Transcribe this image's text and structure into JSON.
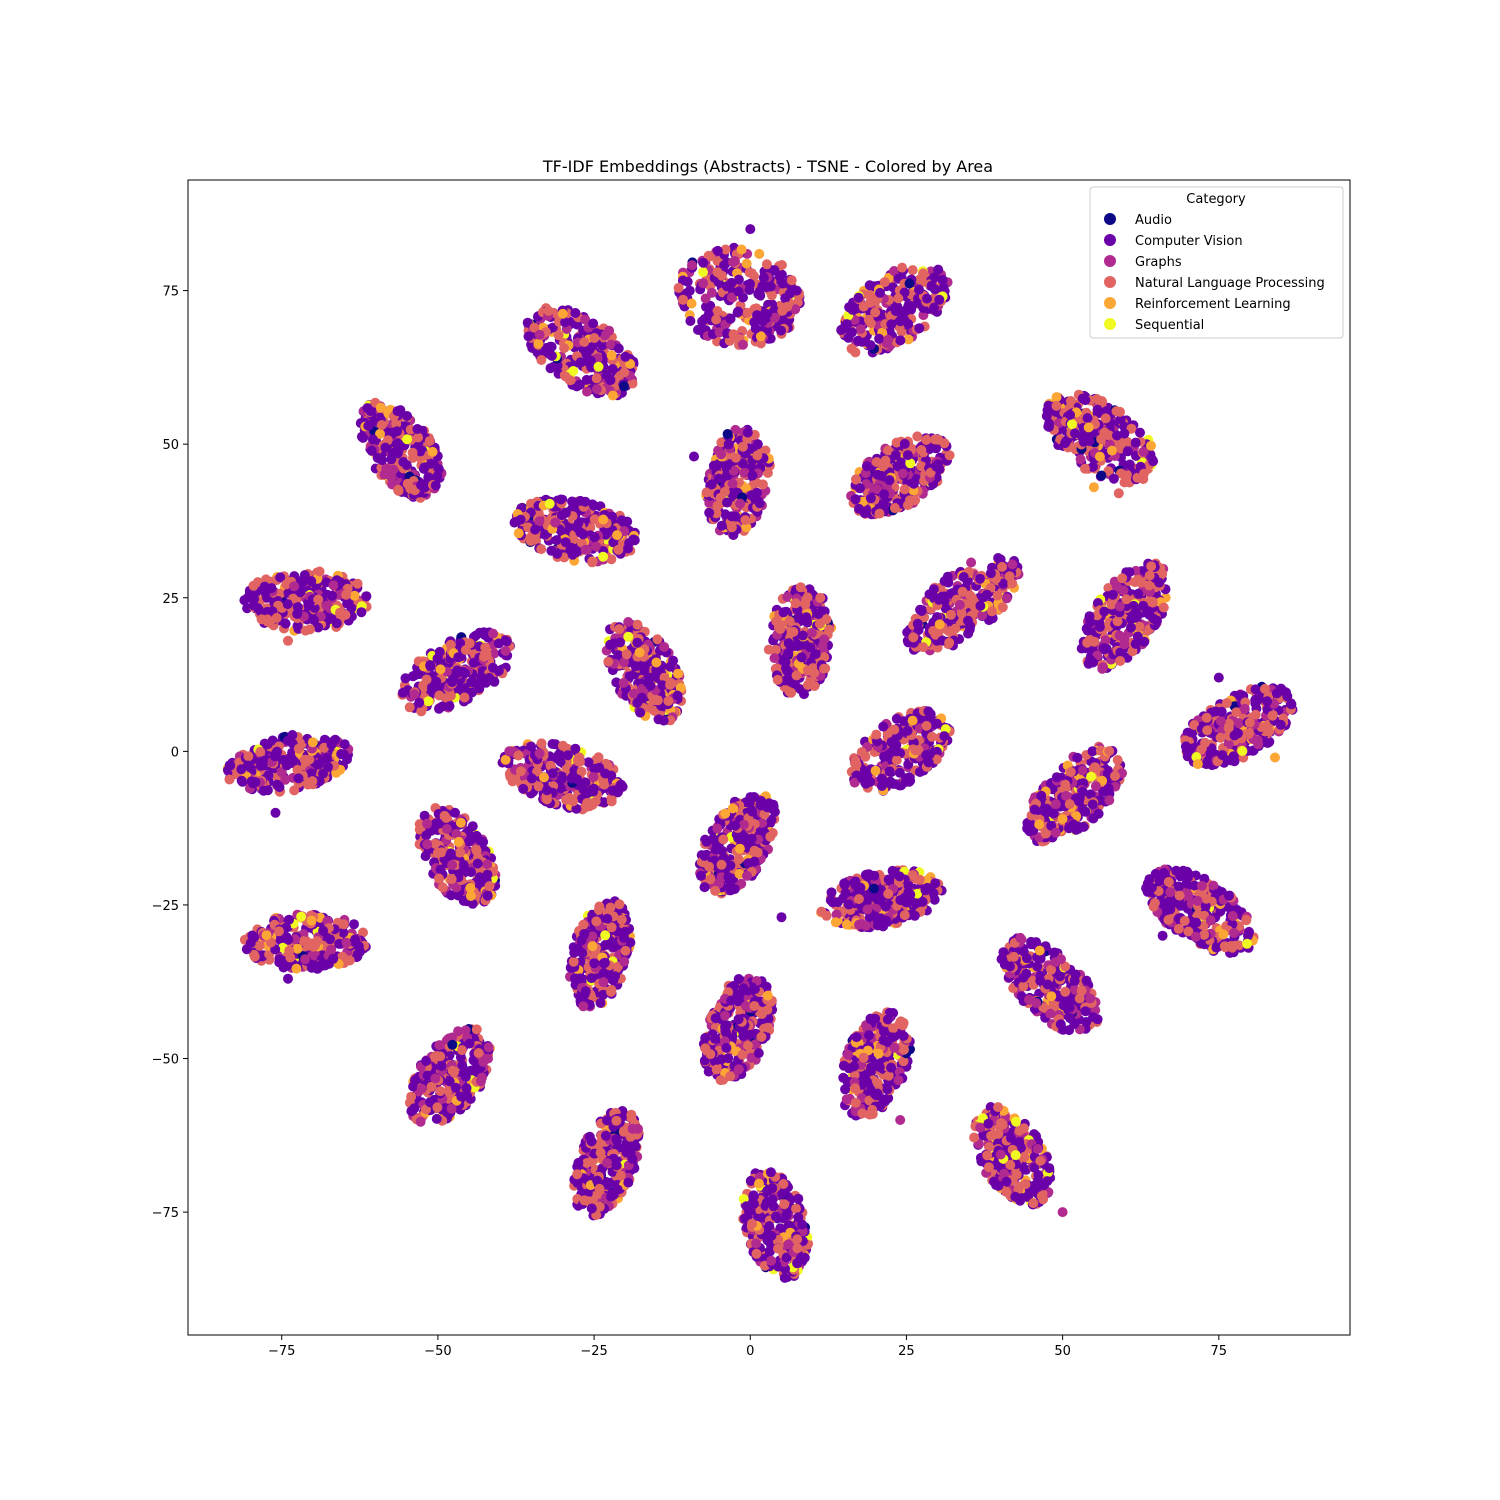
{
  "chart_data": {
    "type": "scatter",
    "title": "TF-IDF Embeddings (Abstracts) - TSNE - Colored by Area",
    "xlabel": "",
    "ylabel": "",
    "xlim": [
      -90,
      96
    ],
    "ylim": [
      -95,
      93
    ],
    "xticks": [
      -75,
      -50,
      -25,
      0,
      25,
      50,
      75
    ],
    "yticks": [
      -75,
      -50,
      -25,
      0,
      25,
      50,
      75
    ],
    "xtick_labels": [
      "−75",
      "−50",
      "−25",
      "0",
      "25",
      "50",
      "75"
    ],
    "ytick_labels": [
      "−75",
      "−50",
      "−25",
      "0",
      "25",
      "50",
      "75"
    ],
    "grid": false,
    "legend": {
      "title": "Category",
      "placement": "top-right"
    },
    "series": [
      {
        "name": "Audio",
        "color": "#0d0887",
        "weight": 0.01
      },
      {
        "name": "Computer Vision",
        "color": "#6a00a8",
        "weight": 0.48
      },
      {
        "name": "Graphs",
        "color": "#b12a90",
        "weight": 0.14
      },
      {
        "name": "Natural Language Processing",
        "color": "#e16462",
        "weight": 0.3
      },
      {
        "name": "Reinforcement Learning",
        "color": "#fca636",
        "weight": 0.05
      },
      {
        "name": "Sequential",
        "color": "#f0f921",
        "weight": 0.02
      }
    ],
    "clusters": [
      {
        "cx": -2,
        "cy": 74,
        "rx": 8,
        "ry": 10,
        "angle": 80
      },
      {
        "cx": 23,
        "cy": 72,
        "rx": 10,
        "ry": 5.5,
        "angle": 35
      },
      {
        "cx": -27,
        "cy": 65,
        "rx": 10,
        "ry": 5.5,
        "angle": -35
      },
      {
        "cx": -56,
        "cy": 49,
        "rx": 9,
        "ry": 5,
        "angle": -55
      },
      {
        "cx": -2,
        "cy": 44,
        "rx": 9,
        "ry": 5,
        "angle": 80
      },
      {
        "cx": 24,
        "cy": 45,
        "rx": 9,
        "ry": 5,
        "angle": 35
      },
      {
        "cx": 56,
        "cy": 51,
        "rx": 10,
        "ry": 5.5,
        "angle": -35
      },
      {
        "cx": -28,
        "cy": 36,
        "rx": 10,
        "ry": 5,
        "angle": -12
      },
      {
        "cx": -71,
        "cy": 24.5,
        "rx": 10,
        "ry": 5,
        "angle": 0
      },
      {
        "cx": 34,
        "cy": 24,
        "rx": 11,
        "ry": 5,
        "angle": 40
      },
      {
        "cx": 60,
        "cy": 22,
        "rx": 10,
        "ry": 5,
        "angle": 55
      },
      {
        "cx": 8,
        "cy": 18,
        "rx": 9,
        "ry": 5,
        "angle": 85
      },
      {
        "cx": -47,
        "cy": 13,
        "rx": 10,
        "ry": 5,
        "angle": 30
      },
      {
        "cx": -17,
        "cy": 13,
        "rx": 9,
        "ry": 5,
        "angle": -60
      },
      {
        "cx": 78,
        "cy": 4,
        "rx": 10,
        "ry": 5,
        "angle": 30
      },
      {
        "cx": -74,
        "cy": -2,
        "rx": 10,
        "ry": 4.5,
        "angle": 12
      },
      {
        "cx": -30,
        "cy": -4,
        "rx": 10,
        "ry": 5,
        "angle": -15
      },
      {
        "cx": 24,
        "cy": 0,
        "rx": 9,
        "ry": 5,
        "angle": 35
      },
      {
        "cx": 52,
        "cy": -7,
        "rx": 10,
        "ry": 5,
        "angle": 45
      },
      {
        "cx": -2,
        "cy": -15,
        "rx": 9,
        "ry": 5,
        "angle": 60
      },
      {
        "cx": -47,
        "cy": -17,
        "rx": 9,
        "ry": 5,
        "angle": -60
      },
      {
        "cx": 21,
        "cy": -24,
        "rx": 10,
        "ry": 4.5,
        "angle": 10
      },
      {
        "cx": 72,
        "cy": -26,
        "rx": 10,
        "ry": 5,
        "angle": -35
      },
      {
        "cx": -71,
        "cy": -31,
        "rx": 10,
        "ry": 4.5,
        "angle": 0
      },
      {
        "cx": -24,
        "cy": -33,
        "rx": 9,
        "ry": 4.5,
        "angle": 75
      },
      {
        "cx": 48,
        "cy": -38,
        "rx": 10,
        "ry": 5,
        "angle": -45
      },
      {
        "cx": -2,
        "cy": -45,
        "rx": 9,
        "ry": 5,
        "angle": 70
      },
      {
        "cx": 20,
        "cy": -51,
        "rx": 9,
        "ry": 5,
        "angle": 70
      },
      {
        "cx": -48,
        "cy": -53,
        "rx": 9,
        "ry": 5,
        "angle": 55
      },
      {
        "cx": -23,
        "cy": -67,
        "rx": 9,
        "ry": 4.5,
        "angle": 70
      },
      {
        "cx": 42,
        "cy": -66,
        "rx": 9,
        "ry": 5,
        "angle": -60
      },
      {
        "cx": 4,
        "cy": -77,
        "rx": 9,
        "ry": 5,
        "angle": -75
      }
    ],
    "outliers": [
      {
        "x": 0,
        "y": 85,
        "series": 1
      },
      {
        "x": 2,
        "y": 70,
        "series": 1
      },
      {
        "x": -9,
        "y": 48,
        "series": 1
      },
      {
        "x": 59,
        "y": 42,
        "series": 3
      },
      {
        "x": 55,
        "y": 43,
        "series": 4
      },
      {
        "x": -74,
        "y": 18,
        "series": 3
      },
      {
        "x": 75,
        "y": 12,
        "series": 1
      },
      {
        "x": 84,
        "y": -1,
        "series": 4
      },
      {
        "x": -76,
        "y": -10,
        "series": 1
      },
      {
        "x": 5,
        "y": -27,
        "series": 1
      },
      {
        "x": -74,
        "y": -37,
        "series": 1
      },
      {
        "x": 50,
        "y": -75,
        "series": 2
      },
      {
        "x": 24,
        "y": -60,
        "series": 2
      },
      {
        "x": 66,
        "y": -30,
        "series": 1
      }
    ]
  }
}
